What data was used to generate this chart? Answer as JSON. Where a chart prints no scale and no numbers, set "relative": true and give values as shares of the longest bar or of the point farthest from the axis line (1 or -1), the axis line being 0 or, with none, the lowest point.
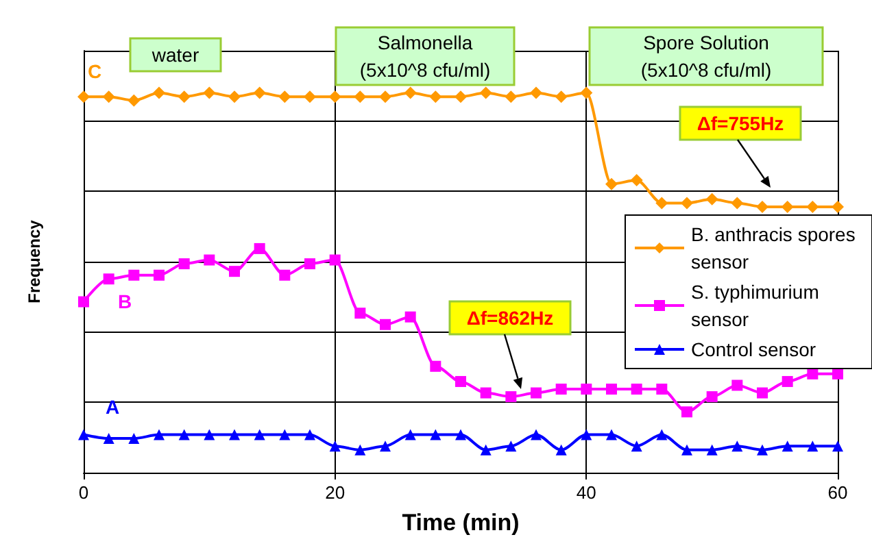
{
  "chart_data": {
    "type": "line",
    "relative": true,
    "xlabel": "Time (min)",
    "ylabel": "Frequency",
    "x": [
      0,
      2,
      4,
      6,
      8,
      10,
      12,
      14,
      16,
      18,
      20,
      22,
      24,
      26,
      28,
      30,
      32,
      34,
      36,
      38,
      40,
      42,
      44,
      46,
      48,
      50,
      52,
      54,
      56,
      58,
      60
    ],
    "xlim": [
      0,
      60
    ],
    "xticks": [
      0,
      20,
      40,
      60
    ],
    "grid": true,
    "legend": "right",
    "line_style": "solid",
    "series": [
      {
        "name": "B. anthracis spores sensor",
        "color": "#ff9900",
        "marker": "diamond",
        "values": [
          0.99,
          0.99,
          0.98,
          1,
          0.99,
          1,
          0.99,
          1,
          0.99,
          0.99,
          0.99,
          0.99,
          0.99,
          1,
          0.99,
          0.99,
          1,
          0.99,
          1,
          0.99,
          1,
          0.76,
          0.77,
          0.71,
          0.71,
          0.72,
          0.71,
          0.7,
          0.7,
          0.7,
          0.7
        ]
      },
      {
        "name": "S. typhimurium sensor",
        "color": "#ff00ff",
        "marker": "square",
        "values": [
          0.45,
          0.51,
          0.52,
          0.52,
          0.55,
          0.56,
          0.53,
          0.59,
          0.52,
          0.55,
          0.56,
          0.42,
          0.39,
          0.41,
          0.28,
          0.24,
          0.21,
          0.2,
          0.21,
          0.22,
          0.22,
          0.22,
          0.22,
          0.22,
          0.16,
          0.2,
          0.23,
          0.21,
          0.24,
          0.26,
          0.26
        ]
      },
      {
        "name": "Control sensor",
        "color": "#0000ff",
        "marker": "triangle",
        "values": [
          0.1,
          0.09,
          0.09,
          0.1,
          0.1,
          0.1,
          0.1,
          0.1,
          0.1,
          0.1,
          0.07,
          0.06,
          0.07,
          0.1,
          0.1,
          0.1,
          0.06,
          0.07,
          0.1,
          0.06,
          0.1,
          0.1,
          0.07,
          0.1,
          0.06,
          0.06,
          0.07,
          0.06,
          0.07,
          0.07,
          0.07
        ]
      }
    ],
    "annotations": [
      "water",
      "Salmonella\n(5x10^8 cfu/ml)",
      "Spore Solution\n(5x10^8 cfu/ml)",
      "C",
      "B",
      "A",
      "Δf=755Hz",
      "Δf=862Hz"
    ]
  }
}
